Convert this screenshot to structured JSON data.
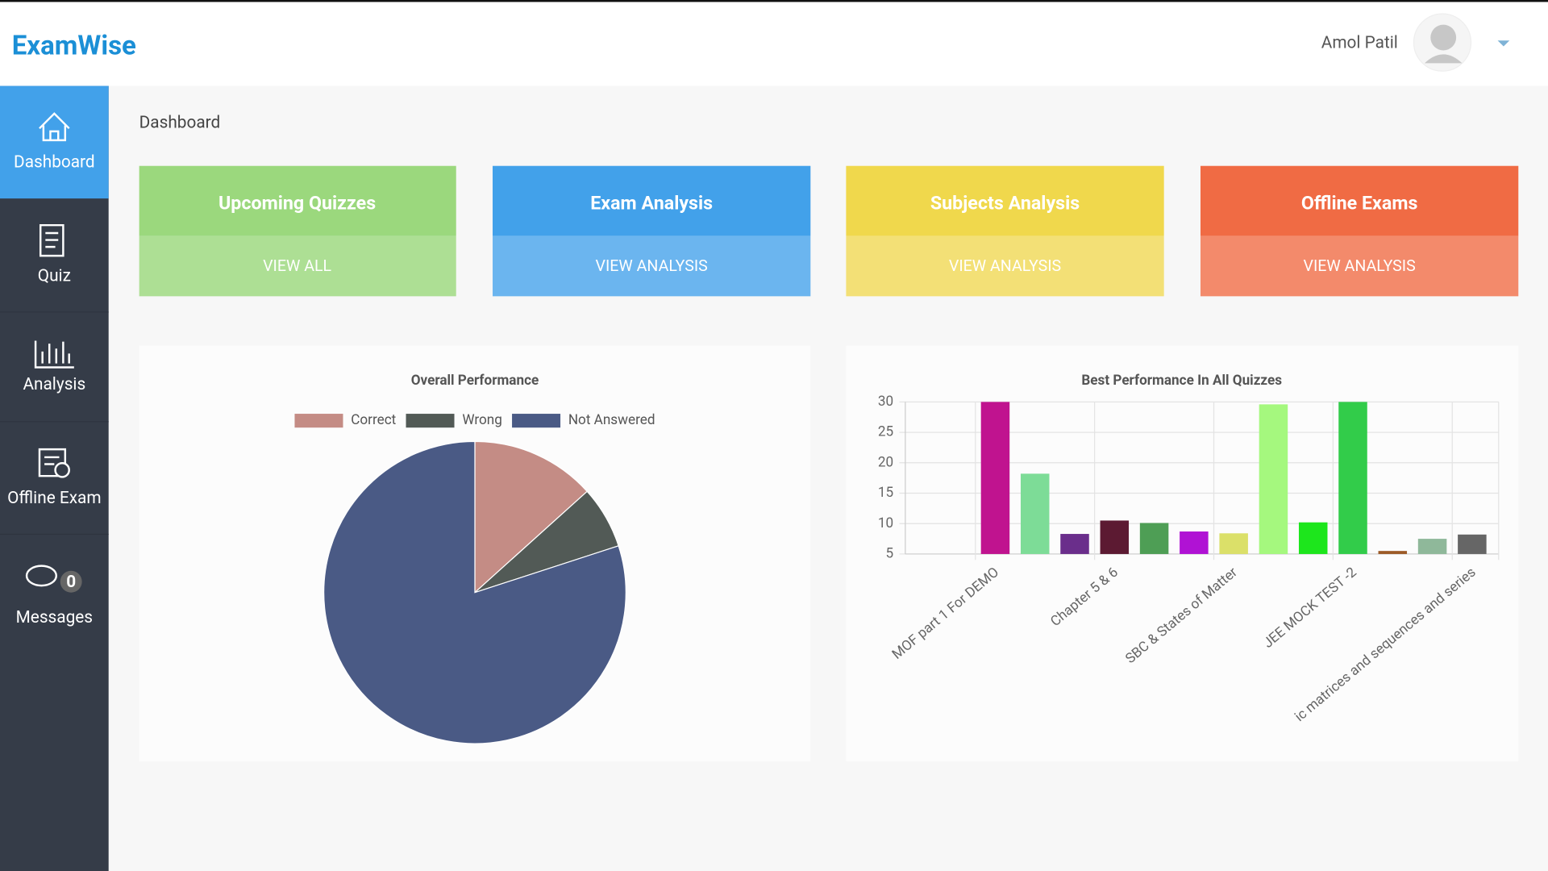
{
  "header": {
    "logo": "ExamWise",
    "user": "Amol Patil"
  },
  "sidebar": [
    {
      "label": "Dashboard"
    },
    {
      "label": "Quiz"
    },
    {
      "label": "Analysis"
    },
    {
      "label": "Offline Exam"
    },
    {
      "label": "Messages",
      "badge": 0
    }
  ],
  "page_title": "Dashboard",
  "cards": [
    {
      "title": "Upcoming Quizzes",
      "action": "VIEW ALL"
    },
    {
      "title": "Exam Analysis",
      "action": "VIEW ANALYSIS"
    },
    {
      "title": "Subjects Analysis",
      "action": "VIEW ANALYSIS"
    },
    {
      "title": "Offline Exams",
      "action": "VIEW ANALYSIS"
    }
  ],
  "chart_data": [
    {
      "type": "pie",
      "title": "Overall Performance",
      "categories": [
        "Correct",
        "Wrong",
        "Not Answered"
      ],
      "values": [
        2,
        1,
        12
      ],
      "colors": [
        "#c48c85",
        "#525a56",
        "#4a5a85"
      ]
    },
    {
      "type": "bar",
      "title": "Best Performance In All Quizzes",
      "categories": [
        "MOF part 1 For DEMO",
        null,
        null,
        "Chapter 5 & 6",
        null,
        null,
        "SBC & States of Matter",
        null,
        null,
        "JEE MOCK TEST -2",
        null,
        null,
        "ic matrices and sequences and series"
      ],
      "values": [
        30,
        18.2,
        8.3,
        10.5,
        10.1,
        8.7,
        8.4,
        29.6,
        10.2,
        30,
        5.5,
        7.5,
        8.2
      ],
      "colors": [
        "#c0138f",
        "#7ddc97",
        "#6a2e8b",
        "#5c1a32",
        "#4e9e55",
        "#b012d4",
        "#dbe069",
        "#a5f87e",
        "#1de61c",
        "#32cc4a",
        "#9c5a27",
        "#8fb89a",
        "#666666"
      ],
      "ylim": [
        5,
        30
      ],
      "yticks": [
        5,
        10,
        15,
        20,
        25,
        30
      ],
      "grid": true
    }
  ]
}
